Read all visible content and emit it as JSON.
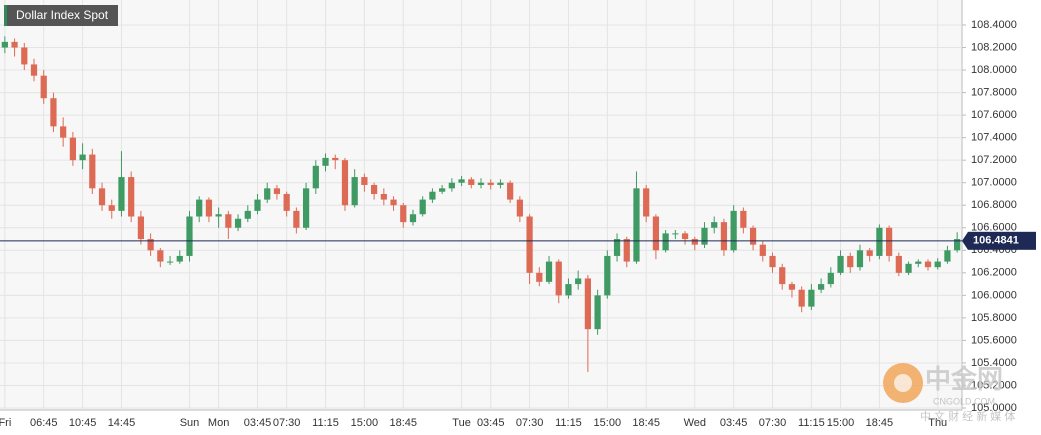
{
  "chart_data": {
    "type": "candlestick",
    "title": "Dollar Index Spot",
    "categories": [
      "Fri",
      null,
      null,
      null,
      "06:45",
      null,
      null,
      null,
      "10:45",
      null,
      null,
      null,
      "14:45",
      null,
      null,
      null,
      null,
      null,
      null,
      "Sun",
      null,
      null,
      "Mon",
      null,
      null,
      null,
      "03:45",
      null,
      null,
      "07:30",
      null,
      null,
      null,
      "11:15",
      null,
      null,
      null,
      "15:00",
      null,
      null,
      null,
      "18:45",
      null,
      null,
      null,
      null,
      null,
      "Tue",
      null,
      null,
      "03:45",
      null,
      null,
      null,
      "07:30",
      null,
      null,
      null,
      "11:15",
      null,
      null,
      null,
      "15:00",
      null,
      null,
      null,
      "18:45",
      null,
      null,
      null,
      null,
      "Wed",
      null,
      null,
      null,
      "03:45",
      null,
      null,
      null,
      "07:30",
      null,
      null,
      null,
      "11:15",
      null,
      null,
      "15:00",
      null,
      null,
      null,
      "18:45",
      null,
      null,
      null,
      null,
      null,
      "Thu",
      null,
      null
    ],
    "open": [
      108.2,
      108.25,
      108.2,
      108.05,
      107.95,
      107.75,
      107.5,
      107.4,
      107.2,
      107.25,
      106.95,
      106.8,
      106.75,
      107.05,
      106.7,
      106.5,
      106.4,
      106.3,
      106.3,
      106.35,
      106.7,
      106.85,
      106.7,
      106.72,
      106.6,
      106.68,
      106.75,
      106.85,
      106.95,
      106.9,
      106.75,
      106.6,
      106.95,
      107.15,
      107.22,
      107.2,
      106.8,
      107.05,
      106.98,
      106.9,
      106.85,
      106.8,
      106.65,
      106.72,
      106.85,
      106.92,
      106.95,
      107.0,
      107.03,
      106.98,
      107.0,
      106.98,
      107.0,
      106.85,
      106.7,
      106.2,
      106.12,
      106.3,
      106.0,
      106.1,
      106.15,
      105.7,
      106.0,
      106.35,
      106.5,
      106.3,
      106.95,
      106.7,
      106.4,
      106.55,
      106.55,
      106.5,
      106.45,
      106.6,
      106.65,
      106.4,
      106.75,
      106.6,
      106.45,
      106.35,
      106.25,
      106.1,
      106.05,
      105.9,
      106.05,
      106.1,
      106.2,
      106.35,
      106.25,
      106.4,
      106.35,
      106.6,
      106.35,
      106.2,
      106.28,
      106.3,
      106.25,
      106.3,
      106.4
    ],
    "high": [
      108.3,
      108.28,
      108.24,
      108.1,
      108.0,
      107.8,
      107.58,
      107.45,
      107.35,
      107.3,
      107.0,
      106.85,
      107.28,
      107.1,
      106.75,
      106.55,
      106.42,
      106.35,
      106.4,
      106.75,
      106.88,
      106.87,
      106.78,
      106.75,
      106.72,
      106.8,
      106.9,
      107.0,
      106.98,
      106.92,
      106.78,
      107.0,
      107.2,
      107.26,
      107.25,
      107.22,
      107.12,
      107.08,
      107.0,
      106.95,
      106.88,
      106.82,
      106.76,
      106.88,
      106.95,
      106.98,
      107.04,
      107.06,
      107.05,
      107.04,
      107.03,
      107.03,
      107.02,
      106.88,
      106.72,
      106.25,
      106.35,
      106.32,
      106.15,
      106.22,
      106.18,
      106.05,
      106.4,
      106.55,
      106.52,
      107.1,
      106.98,
      106.72,
      106.58,
      106.58,
      106.57,
      106.52,
      106.65,
      106.7,
      106.68,
      106.8,
      106.78,
      106.62,
      106.48,
      106.38,
      106.28,
      106.12,
      106.08,
      106.1,
      106.15,
      106.25,
      106.4,
      106.38,
      106.45,
      106.42,
      106.63,
      106.62,
      106.38,
      106.3,
      106.32,
      106.32,
      106.33,
      106.44,
      106.56
    ],
    "low": [
      108.15,
      108.12,
      108.0,
      107.9,
      107.7,
      107.45,
      107.32,
      107.15,
      107.12,
      106.9,
      106.75,
      106.68,
      106.7,
      106.65,
      106.45,
      106.35,
      106.25,
      106.27,
      106.28,
      106.3,
      106.65,
      106.65,
      106.6,
      106.5,
      106.57,
      106.65,
      106.72,
      106.82,
      106.85,
      106.7,
      106.55,
      106.58,
      106.9,
      107.1,
      107.12,
      106.75,
      106.78,
      106.92,
      106.85,
      106.8,
      106.75,
      106.6,
      106.62,
      106.7,
      106.82,
      106.9,
      106.92,
      106.97,
      106.95,
      106.95,
      106.94,
      106.95,
      106.82,
      106.65,
      106.1,
      106.08,
      106.1,
      105.93,
      105.97,
      106.05,
      105.32,
      105.65,
      105.97,
      106.3,
      106.25,
      106.28,
      106.65,
      106.32,
      106.38,
      106.5,
      106.45,
      106.4,
      106.42,
      106.55,
      106.35,
      106.38,
      106.55,
      106.4,
      106.3,
      106.2,
      106.05,
      105.98,
      105.85,
      105.87,
      106.02,
      106.07,
      106.18,
      106.2,
      106.22,
      106.3,
      106.32,
      106.3,
      106.17,
      106.18,
      106.25,
      106.22,
      106.23,
      106.28,
      106.38
    ],
    "close": [
      108.25,
      108.2,
      108.05,
      107.95,
      107.75,
      107.5,
      107.4,
      107.2,
      107.25,
      106.95,
      106.8,
      106.75,
      107.05,
      106.7,
      106.5,
      106.4,
      106.3,
      106.3,
      106.35,
      106.7,
      106.85,
      106.7,
      106.72,
      106.6,
      106.68,
      106.75,
      106.85,
      106.95,
      106.9,
      106.75,
      106.6,
      106.95,
      107.15,
      107.22,
      107.2,
      106.8,
      107.05,
      106.98,
      106.9,
      106.85,
      106.8,
      106.65,
      106.72,
      106.85,
      106.92,
      106.95,
      107.0,
      107.03,
      106.98,
      107.0,
      106.98,
      107.0,
      106.85,
      106.7,
      106.2,
      106.12,
      106.3,
      106.0,
      106.1,
      106.15,
      105.7,
      106.0,
      106.35,
      106.5,
      106.3,
      106.95,
      106.7,
      106.4,
      106.55,
      106.55,
      106.5,
      106.45,
      106.6,
      106.65,
      106.4,
      106.75,
      106.6,
      106.45,
      106.35,
      106.25,
      106.1,
      106.05,
      105.9,
      106.05,
      106.1,
      106.2,
      106.35,
      106.25,
      106.4,
      106.35,
      106.6,
      106.35,
      106.2,
      106.28,
      106.3,
      106.25,
      106.3,
      106.4,
      106.5
    ],
    "up_color": "#3f9a63",
    "down_color": "#dd6a55",
    "last_price": 106.4841,
    "last_price_color": "#1e2a55",
    "ylim": [
      105.0,
      108.5
    ],
    "yticks": [
      {
        "value": 105.0,
        "label": "105.0000"
      },
      {
        "value": 105.2,
        "label": "105.2000"
      },
      {
        "value": 105.4,
        "label": "105.4000"
      },
      {
        "value": 105.6,
        "label": "105.6000"
      },
      {
        "value": 105.8,
        "label": "105.8000"
      },
      {
        "value": 106.0,
        "label": "106.0000"
      },
      {
        "value": 106.2,
        "label": "106.2000"
      },
      {
        "value": 106.4,
        "label": "106.4000"
      },
      {
        "value": 106.6,
        "label": "106.6000"
      },
      {
        "value": 106.8,
        "label": "106.8000"
      },
      {
        "value": 107.0,
        "label": "107.0000"
      },
      {
        "value": 107.2,
        "label": "107.2000"
      },
      {
        "value": 107.4,
        "label": "107.4000"
      },
      {
        "value": 107.6,
        "label": "107.6000"
      },
      {
        "value": 107.8,
        "label": "107.8000"
      },
      {
        "value": 108.0,
        "label": "108.0000"
      },
      {
        "value": 108.2,
        "label": "108.2000"
      },
      {
        "value": 108.4,
        "label": "108.4000"
      }
    ],
    "grid": true,
    "watermark": {
      "name": "中金网",
      "url": "CNGOLD.COM",
      "tagline": "中 文 财 经 新 媒 体"
    }
  }
}
